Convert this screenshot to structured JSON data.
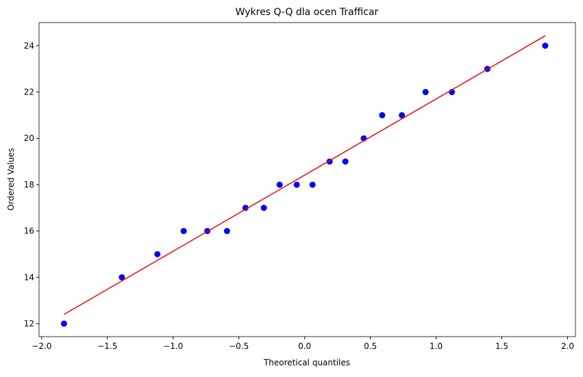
{
  "chart_data": {
    "type": "qq",
    "title": "Wykres Q-Q dla ocen Trafficar",
    "xlabel": "Theoretical quantiles",
    "ylabel": "Ordered Values",
    "series": [
      {
        "type": "scatter",
        "color": "#0000ff",
        "x": [
          -1.83,
          -1.39,
          -1.12,
          -0.92,
          -0.74,
          -0.59,
          -0.45,
          -0.31,
          -0.19,
          -0.06,
          0.06,
          0.19,
          0.31,
          0.45,
          0.59,
          0.74,
          0.92,
          1.12,
          1.39,
          1.83
        ],
        "values": [
          12,
          14,
          15,
          16,
          16,
          16,
          17,
          17,
          18,
          18,
          18,
          19,
          19,
          20,
          21,
          21,
          22,
          22,
          23,
          24
        ]
      },
      {
        "type": "line",
        "color": "#ff0000",
        "x": [
          -1.83,
          1.83
        ],
        "values": [
          12.4,
          24.43
        ]
      }
    ],
    "xlim": [
      -2.02,
      2.06
    ],
    "ylim": [
      11.44,
      25.0
    ],
    "xticks": [
      {
        "value": -2.0,
        "label": "−2.0"
      },
      {
        "value": -1.5,
        "label": "−1.5"
      },
      {
        "value": -1.0,
        "label": "−1.0"
      },
      {
        "value": -0.5,
        "label": "−0.5"
      },
      {
        "value": 0.0,
        "label": "0.0"
      },
      {
        "value": 0.5,
        "label": "0.5"
      },
      {
        "value": 1.0,
        "label": "1.0"
      },
      {
        "value": 1.5,
        "label": "1.5"
      },
      {
        "value": 2.0,
        "label": "2.0"
      }
    ],
    "yticks": [
      12,
      14,
      16,
      18,
      20,
      22,
      24
    ],
    "grid": false
  }
}
